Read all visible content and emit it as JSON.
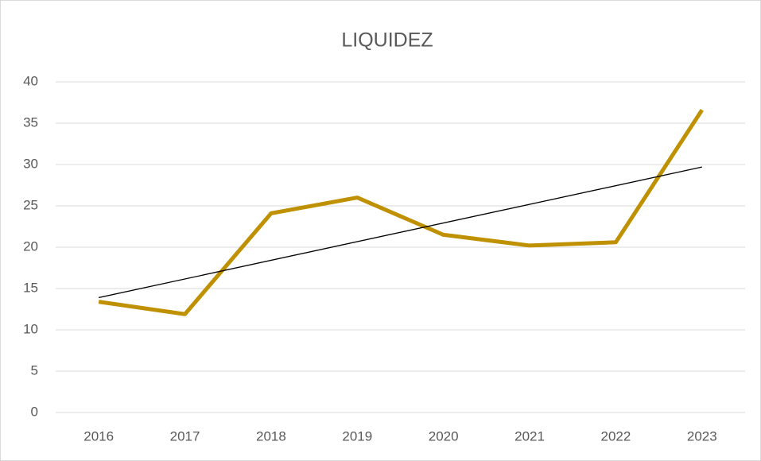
{
  "chart_data": {
    "type": "line",
    "title": "LIQUIDEZ",
    "categories": [
      "2016",
      "2017",
      "2018",
      "2019",
      "2020",
      "2021",
      "2022",
      "2023"
    ],
    "series": [
      {
        "color": "#bf9000",
        "values": [
          13.4,
          11.9,
          24.1,
          26.0,
          21.5,
          20.2,
          20.6,
          36.6
        ]
      }
    ],
    "trendline": {
      "color": "#000000",
      "values": [
        13.9,
        29.7
      ]
    },
    "ylim": [
      0,
      40
    ],
    "yticks": [
      0,
      5,
      10,
      15,
      20,
      25,
      30,
      35,
      40
    ],
    "grid": true
  }
}
